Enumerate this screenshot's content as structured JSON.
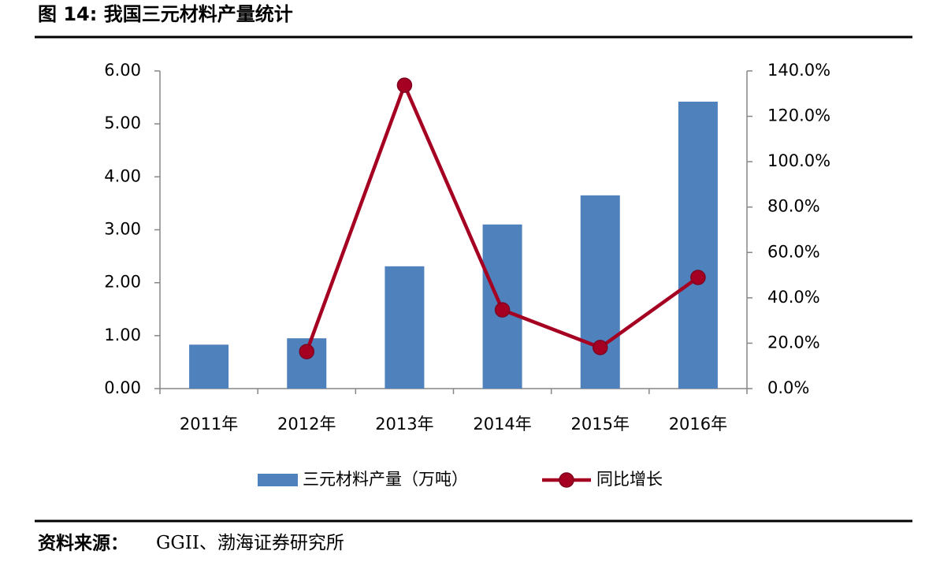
{
  "chart_data": {
    "type": "bar",
    "title": "图 14:  我国三元材料产量统计",
    "categories": [
      "2011年",
      "2012年",
      "2013年",
      "2014年",
      "2015年",
      "2016年"
    ],
    "series": [
      {
        "name": "三元材料产量（万吨）",
        "type": "bar",
        "color": "#4f81bd",
        "values": [
          0.83,
          0.95,
          2.31,
          3.1,
          3.65,
          5.42
        ]
      },
      {
        "name": "同比增长",
        "type": "line",
        "axis": "y2",
        "color": "#a50021",
        "values": [
          null,
          16.3,
          133.7,
          34.7,
          18.1,
          49.0
        ]
      }
    ],
    "ylim": [
      0,
      6
    ],
    "yticks": [
      {
        "value": 0,
        "label": "0.00"
      },
      {
        "value": 1,
        "label": "1.00"
      },
      {
        "value": 2,
        "label": "2.00"
      },
      {
        "value": 3,
        "label": "3.00"
      },
      {
        "value": 4,
        "label": "4.00"
      },
      {
        "value": 5,
        "label": "5.00"
      },
      {
        "value": 6,
        "label": "6.00"
      }
    ],
    "y2lim": [
      0,
      140
    ],
    "y2ticks": [
      {
        "value": 0,
        "label": "0.0%"
      },
      {
        "value": 20,
        "label": "20.0%"
      },
      {
        "value": 40,
        "label": "40.0%"
      },
      {
        "value": 60,
        "label": "60.0%"
      },
      {
        "value": 80,
        "label": "80.0%"
      },
      {
        "value": 100,
        "label": "100.0%"
      },
      {
        "value": 120,
        "label": "120.0%"
      },
      {
        "value": 140,
        "label": "140.0%"
      }
    ],
    "grid": false,
    "legend": "bottom",
    "source": {
      "label": "资料来源：",
      "text": "GGII、渤海证券研究所"
    }
  }
}
